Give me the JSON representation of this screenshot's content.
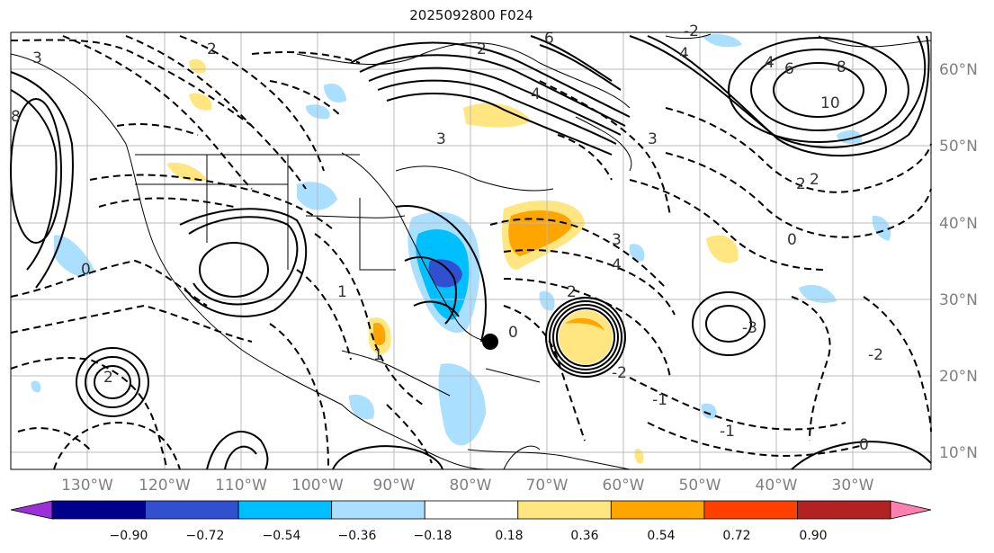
{
  "title": "2025092800 F024",
  "lon_labels": [
    "130°W",
    "120°W",
    "110°W",
    "100°W",
    "90°W",
    "80°W",
    "70°W",
    "60°W",
    "50°W",
    "40°W",
    "30°W"
  ],
  "lat_labels": [
    "60°N",
    "50°N",
    "40°N",
    "30°N",
    "20°N",
    "10°N"
  ],
  "colorbar": {
    "ticks": [
      "−0.90",
      "−0.72",
      "−0.54",
      "−0.36",
      "−0.18",
      "0.18",
      "0.36",
      "0.54",
      "0.72",
      "0.90"
    ],
    "under_color": "#9b30d9",
    "over_color": "#ff80b0",
    "colors": [
      "#9b30d9",
      "#00008b",
      "#3050d0",
      "#00bfff",
      "#aadfff",
      "#ffffff",
      "#ffe680",
      "#ffa500",
      "#ff4000",
      "#b22222",
      "#ff80b0"
    ]
  },
  "contour_labels": [
    "6",
    "4",
    "2",
    "8",
    "10",
    "4",
    "6",
    "8",
    "3",
    "4",
    "2",
    "1",
    "0",
    "-1",
    "-2",
    "2",
    "3",
    "4",
    "2",
    "0",
    "-2",
    "-3",
    "2",
    "3",
    "0",
    "-2",
    "-1",
    "0",
    "1",
    "2",
    "3"
  ],
  "colors": {
    "grid": "#bbbbbb",
    "coast": "#000000",
    "axis_label": "#808080"
  }
}
